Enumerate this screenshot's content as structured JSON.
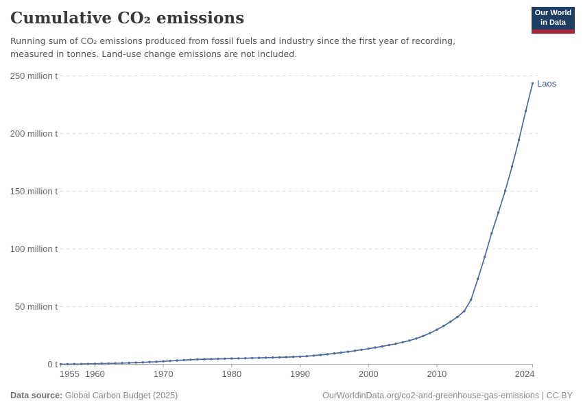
{
  "header": {
    "title": "Cumulative CO₂ emissions",
    "subtitle": "Running sum of CO₂ emissions produced from fossil fuels and industry since the first year of recording, measured in tonnes. Land-use change emissions are not included.",
    "logo_line1": "Our World",
    "logo_line2": "in Data",
    "logo_bg_color": "#1d3d63",
    "logo_accent_color": "#a52639"
  },
  "chart_data": {
    "type": "line",
    "title": "Cumulative CO₂ emissions",
    "entity": "Laos",
    "unit": "tonnes",
    "series_color": "#4c6a9c",
    "grid": true,
    "xlim": [
      1955,
      2024
    ],
    "ylim": [
      0,
      250
    ],
    "xticks": [
      1955,
      1960,
      1970,
      1980,
      1990,
      2000,
      2010,
      2024
    ],
    "yticks": [
      {
        "value": 0,
        "label": "0 t"
      },
      {
        "value": 50,
        "label": "50 million t"
      },
      {
        "value": 100,
        "label": "100 million t"
      },
      {
        "value": 150,
        "label": "150 million t"
      },
      {
        "value": 200,
        "label": "200 million t"
      },
      {
        "value": 250,
        "label": "250 million t"
      }
    ],
    "values_unit_label": "million t",
    "years": [
      1955,
      1956,
      1957,
      1958,
      1959,
      1960,
      1961,
      1962,
      1963,
      1964,
      1965,
      1966,
      1967,
      1968,
      1969,
      1970,
      1971,
      1972,
      1973,
      1974,
      1975,
      1976,
      1977,
      1978,
      1979,
      1980,
      1981,
      1982,
      1983,
      1984,
      1985,
      1986,
      1987,
      1988,
      1989,
      1990,
      1991,
      1992,
      1993,
      1994,
      1995,
      1996,
      1997,
      1998,
      1999,
      2000,
      2001,
      2002,
      2003,
      2004,
      2005,
      2006,
      2007,
      2008,
      2009,
      2010,
      2011,
      2012,
      2013,
      2014,
      2015,
      2016,
      2017,
      2018,
      2019,
      2020,
      2021,
      2022,
      2023,
      2024
    ],
    "values": [
      0.05,
      0.1,
      0.17,
      0.25,
      0.34,
      0.45,
      0.57,
      0.7,
      0.85,
      1.0,
      1.2,
      1.4,
      1.65,
      1.95,
      2.2,
      2.55,
      2.9,
      3.3,
      3.65,
      3.95,
      4.2,
      4.4,
      4.55,
      4.7,
      4.85,
      5.0,
      5.1,
      5.25,
      5.4,
      5.55,
      5.7,
      5.85,
      6.0,
      6.2,
      6.4,
      6.6,
      7.0,
      7.5,
      8.1,
      8.7,
      9.4,
      10.1,
      10.9,
      11.7,
      12.6,
      13.5,
      14.5,
      15.5,
      16.6,
      17.8,
      19.1,
      20.6,
      22.4,
      24.5,
      27.0,
      30.0,
      33.3,
      36.9,
      41.0,
      46.0,
      56.0,
      74.0,
      93.0,
      113.5,
      131.5,
      150.5,
      171.5,
      194.5,
      219.5,
      243.5
    ],
    "end_label": "Laos",
    "legend_position": "end-of-line"
  },
  "footer": {
    "source_label": "Data source:",
    "source_value": " Global Carbon Budget (2025)",
    "url_text": "OurWorldinData.org/co2-and-greenhouse-gas-emissions | CC BY"
  }
}
